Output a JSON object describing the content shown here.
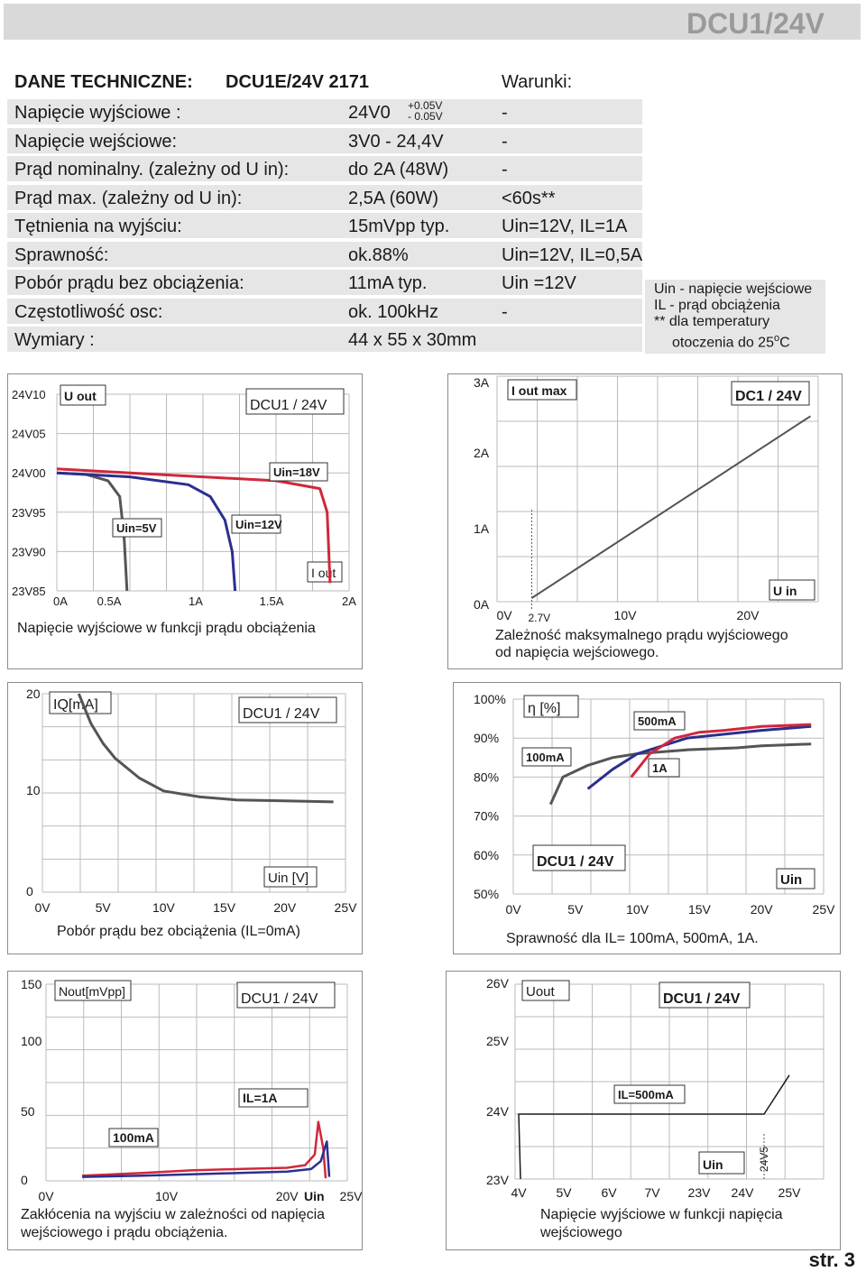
{
  "page_header": {
    "title": "DCU1/24V"
  },
  "specs": {
    "title": "DANE TECHNICZNE:",
    "model": "DCU1E/24V  2171",
    "conditions_header": "Warunki:",
    "rows": [
      {
        "label": "Napięcie wyjściowe :",
        "value": "24V0",
        "condition": "-"
      },
      {
        "label": "Napięcie wejściowe:",
        "value": "3V0 - 24,4V",
        "condition": "-"
      },
      {
        "label": "Prąd nominalny. (zależny od U in):",
        "value": "do 2A  (48W)",
        "condition": "-"
      },
      {
        "label": "Prąd max. (zależny od U in):",
        "value": "2,5A  (60W)",
        "condition": "<60s**"
      },
      {
        "label": "Tętnienia na wyjściu:",
        "value": "15mVpp typ.",
        "condition": "Uin=12V, IL=1A"
      },
      {
        "label": "Sprawność:",
        "value": "ok.88%",
        "condition": "Uin=12V, IL=0,5A"
      },
      {
        "label": "Pobór prądu bez obciążenia:",
        "value": "11mA  typ.",
        "condition": "Uin =12V"
      },
      {
        "label": "Częstotliwość osc:",
        "value": "ok. 100kHz",
        "condition": "-"
      },
      {
        "label": "Wymiary :",
        "value": "44 x 55 x 30mm",
        "condition": ""
      }
    ],
    "tolerance_plus": "+0.05V",
    "tolerance_minus": "- 0.05V"
  },
  "notes": {
    "line1": "Uin - napięcie wejściowe",
    "line2": "IL - prąd obciążenia",
    "line3": "** dla temperatury",
    "line4": "otoczenia do 25",
    "line4_sup": "o",
    "line4_end": "C"
  },
  "chart_data": [
    {
      "type": "line",
      "title": "DCU1 / 24V",
      "caption": "Napięcie wyjściowe w funkcji prądu obciążenia",
      "y_title": "U out",
      "x_title": "I out",
      "x_ticks": [
        "0A",
        "0.5A",
        "1A",
        "1.5A",
        "2A"
      ],
      "y_ticks": [
        "24V10",
        "24V05",
        "24V00",
        "23V95",
        "23V90",
        "23V85"
      ],
      "xlim": [
        0,
        2
      ],
      "ylim": [
        23.85,
        24.1
      ],
      "series": [
        {
          "name": "Uin=5V",
          "color": "#555555",
          "x": [
            0,
            0.2,
            0.35,
            0.43,
            0.46,
            0.48
          ],
          "y": [
            24.0,
            23.998,
            23.99,
            23.97,
            23.92,
            23.85
          ]
        },
        {
          "name": "Uin=12V",
          "color": "#2b2f8f",
          "x": [
            0,
            0.5,
            0.9,
            1.05,
            1.15,
            1.2,
            1.22
          ],
          "y": [
            24.0,
            23.995,
            23.985,
            23.97,
            23.94,
            23.9,
            23.85
          ]
        },
        {
          "name": "Uin=18V",
          "color": "#d0283a",
          "x": [
            0,
            0.5,
            1.0,
            1.5,
            1.8,
            1.85,
            1.87
          ],
          "y": [
            24.005,
            24.0,
            23.995,
            23.99,
            23.98,
            23.95,
            23.86
          ]
        }
      ]
    },
    {
      "type": "line",
      "title": "DC1 / 24V",
      "caption_line1": "Zależność maksymalnego prądu wyjściowego",
      "caption_line2": "od napięcia wejściowego.",
      "y_title": "I out max",
      "x_title": "U in",
      "x_ticks": [
        "0V",
        "10V",
        "20V"
      ],
      "x_mark": "2.7V",
      "y_ticks": [
        "3A",
        "2A",
        "1A",
        "0A"
      ],
      "xlim": [
        0,
        25
      ],
      "ylim": [
        0,
        3
      ],
      "series": [
        {
          "name": "",
          "color": "#555555",
          "x": [
            2.7,
            24.4
          ],
          "y": [
            0.05,
            2.55
          ]
        }
      ]
    },
    {
      "type": "line",
      "title": "DCU1 / 24V",
      "caption": "Pobór prądu bez obciążenia  (IL=0mA)",
      "y_title": "IQ[mA]",
      "x_title": "Uin [V]",
      "x_ticks": [
        "0V",
        "5V",
        "10V",
        "15V",
        "20V",
        "25V"
      ],
      "y_ticks": [
        "20",
        "10",
        "0"
      ],
      "xlim": [
        0,
        25
      ],
      "ylim": [
        0,
        20
      ],
      "series": [
        {
          "name": "",
          "color": "#555555",
          "x": [
            3,
            4,
            5,
            6,
            8,
            10,
            13,
            16,
            20,
            24
          ],
          "y": [
            20,
            17,
            15,
            13.5,
            11.5,
            10.2,
            9.6,
            9.3,
            9.2,
            9.1
          ]
        }
      ]
    },
    {
      "type": "line",
      "title": "DCU1 / 24V",
      "caption": "Sprawność dla IL= 100mA, 500mA, 1A.",
      "y_title": "η [%]",
      "x_title": "Uin",
      "x_ticks": [
        "0V",
        "5V",
        "10V",
        "15V",
        "20V",
        "25V"
      ],
      "y_ticks": [
        "100%",
        "90%",
        "80%",
        "70%",
        "60%",
        "50%"
      ],
      "xlim": [
        0,
        25
      ],
      "ylim": [
        50,
        100
      ],
      "series": [
        {
          "name": "100mA",
          "color": "#555555",
          "x": [
            3,
            4,
            6,
            8,
            10,
            14,
            18,
            20,
            24
          ],
          "y": [
            73,
            80,
            83,
            85,
            86,
            87,
            87.5,
            88,
            88.5
          ]
        },
        {
          "name": "500mA",
          "color": "#2b2f8f",
          "x": [
            6,
            8,
            10,
            12,
            14,
            17,
            20,
            24
          ],
          "y": [
            77,
            82,
            86,
            88,
            90,
            91,
            92,
            93
          ]
        },
        {
          "name": "1A",
          "color": "#d0283a",
          "x": [
            9.5,
            11,
            13,
            15,
            17,
            20,
            24
          ],
          "y": [
            80,
            86,
            90,
            91.5,
            92,
            93,
            93.5
          ]
        }
      ]
    },
    {
      "type": "line",
      "title": "DCU1 / 24V",
      "caption_line1": "Zakłócenia na wyjściu w zależności od napięcia",
      "caption_line2": "wejściowego i prądu obciążenia.",
      "y_title": "Nout[mVpp]",
      "x_title": "Uin",
      "x_ticks": [
        "0V",
        "10V",
        "20V",
        "25V"
      ],
      "y_ticks": [
        "150",
        "100",
        "50",
        "0"
      ],
      "xlim": [
        0,
        25
      ],
      "ylim": [
        0,
        150
      ],
      "series": [
        {
          "name": "IL=1A",
          "color": "#d0283a",
          "x": [
            3,
            8,
            12,
            16,
            20,
            21.5,
            22.3,
            22.6,
            23.0,
            23.2
          ],
          "y": [
            4,
            6,
            8,
            9,
            10,
            12,
            20,
            45,
            25,
            2
          ]
        },
        {
          "name": "100mA",
          "color": "#2b2f8f",
          "x": [
            3,
            8,
            12,
            16,
            20,
            22,
            22.8,
            23.3,
            23.5
          ],
          "y": [
            3,
            4,
            5,
            6,
            7,
            9,
            15,
            30,
            3
          ]
        }
      ]
    },
    {
      "type": "line",
      "title": "DCU1 / 24V",
      "caption_line1": "Napięcie wyjściowe w funkcji napięcia",
      "caption_line2": "wejściowego",
      "y_title": "Uout",
      "x_title": "Uin",
      "x_ticks": [
        "4V",
        "5V",
        "6V",
        "7V",
        "23V",
        "24V",
        "25V"
      ],
      "x_mark": "24V5",
      "y_ticks": [
        "26V",
        "25V",
        "24V",
        "23V"
      ],
      "ylim": [
        23,
        26
      ],
      "series": [
        {
          "name": "IL=500mA",
          "color": "#1a1a1a",
          "x": [
            "4V",
            "4V",
            "23V",
            "24V",
            "24V5",
            "25V"
          ],
          "y": [
            23.0,
            24.0,
            24.0,
            24.0,
            24.0,
            24.6
          ]
        }
      ]
    }
  ],
  "page_number": "str. 3"
}
